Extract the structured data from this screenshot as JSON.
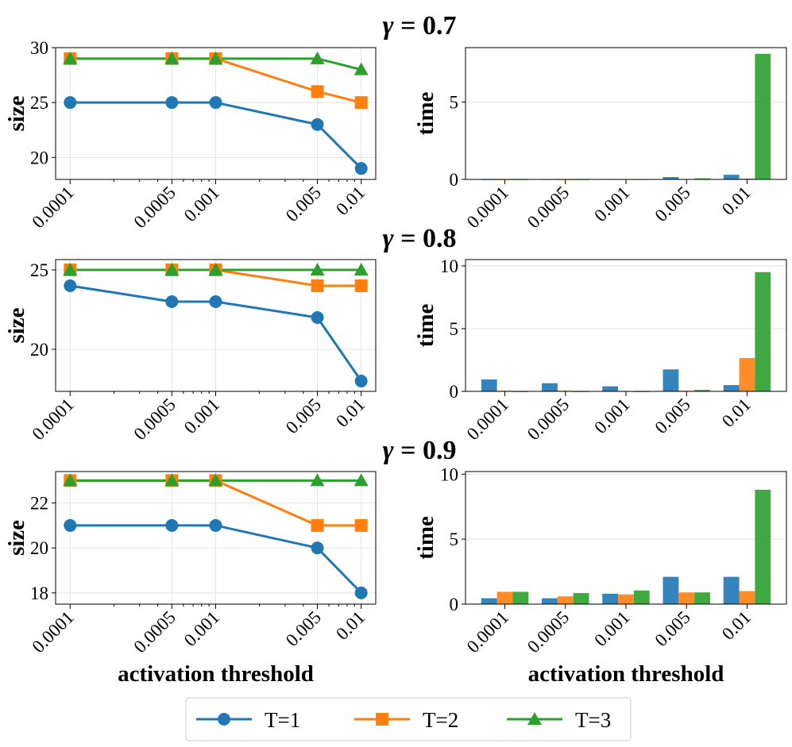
{
  "legend": {
    "entries": [
      {
        "label": "T=1",
        "color": "#1f77b4",
        "marker": "circle"
      },
      {
        "label": "T=2",
        "color": "#ff7f0e",
        "marker": "square"
      },
      {
        "label": "T=3",
        "color": "#2ca02c",
        "marker": "triangle"
      }
    ]
  },
  "chart_data": [
    {
      "type": "line",
      "panel": "gamma-0.7-size",
      "title": "γ = 0.7",
      "title_var": "γ",
      "title_val": "= 0.7",
      "xscale": "log",
      "x": [
        0.0001,
        0.0005,
        0.001,
        0.005,
        0.01
      ],
      "xtick_labels": [
        "0.0001",
        "0.0005",
        "0.001",
        "0.005",
        "0.01"
      ],
      "xlabel": "",
      "ylabel": "size",
      "ylim": [
        18.0,
        30.0
      ],
      "yticks": [
        20,
        25,
        30
      ],
      "grid": true,
      "series": [
        {
          "name": "T=1",
          "values": [
            25,
            25,
            25,
            23,
            19
          ]
        },
        {
          "name": "T=2",
          "values": [
            29,
            29,
            29,
            26,
            25
          ]
        },
        {
          "name": "T=3",
          "values": [
            29,
            29,
            29,
            29,
            28
          ]
        }
      ]
    },
    {
      "type": "bar",
      "panel": "gamma-0.7-time",
      "categories": [
        "0.0001",
        "0.0005",
        "0.001",
        "0.005",
        "0.01"
      ],
      "xlabel": "",
      "ylabel": "time",
      "ylim": [
        0,
        8.5
      ],
      "yticks": [
        0,
        5
      ],
      "grid": true,
      "series": [
        {
          "name": "T=1",
          "values": [
            0.01,
            0.02,
            0.03,
            0.15,
            0.3
          ]
        },
        {
          "name": "T=2",
          "values": [
            0.01,
            0.01,
            0.02,
            0.03,
            0.05
          ]
        },
        {
          "name": "T=3",
          "values": [
            0.01,
            0.01,
            0.02,
            0.07,
            8.1
          ]
        }
      ]
    },
    {
      "type": "line",
      "panel": "gamma-0.8-size",
      "title": "γ = 0.8",
      "title_var": "γ",
      "title_val": "= 0.8",
      "xscale": "log",
      "x": [
        0.0001,
        0.0005,
        0.001,
        0.005,
        0.01
      ],
      "xtick_labels": [
        "0.0001",
        "0.0005",
        "0.001",
        "0.005",
        "0.01"
      ],
      "xlabel": "",
      "ylabel": "size",
      "ylim": [
        17.35,
        25.65
      ],
      "yticks": [
        20,
        25
      ],
      "grid": true,
      "series": [
        {
          "name": "T=1",
          "values": [
            24,
            23,
            23,
            22,
            18
          ]
        },
        {
          "name": "T=2",
          "values": [
            25,
            25,
            25,
            24,
            24
          ]
        },
        {
          "name": "T=3",
          "values": [
            25,
            25,
            25,
            25,
            25
          ]
        }
      ]
    },
    {
      "type": "bar",
      "panel": "gamma-0.8-time",
      "categories": [
        "0.0001",
        "0.0005",
        "0.001",
        "0.005",
        "0.01"
      ],
      "xlabel": "",
      "ylabel": "time",
      "ylim": [
        0,
        10.5
      ],
      "yticks": [
        0,
        5,
        10
      ],
      "grid": true,
      "series": [
        {
          "name": "T=1",
          "values": [
            0.95,
            0.65,
            0.4,
            1.75,
            0.5
          ]
        },
        {
          "name": "T=2",
          "values": [
            0.05,
            0.05,
            0.02,
            0.05,
            2.65
          ]
        },
        {
          "name": "T=3",
          "values": [
            0.01,
            0.01,
            0.01,
            0.12,
            9.5
          ]
        }
      ]
    },
    {
      "type": "line",
      "panel": "gamma-0.9-size",
      "title": "γ = 0.9",
      "title_var": "γ",
      "title_val": "= 0.9",
      "xscale": "log",
      "x": [
        0.0001,
        0.0005,
        0.001,
        0.005,
        0.01
      ],
      "xtick_labels": [
        "0.0001",
        "0.0005",
        "0.001",
        "0.005",
        "0.01"
      ],
      "xlabel": "activation threshold",
      "ylabel": "size",
      "ylim": [
        17.5,
        23.4
      ],
      "yticks": [
        18,
        20,
        22
      ],
      "grid": true,
      "series": [
        {
          "name": "T=1",
          "values": [
            21,
            21,
            21,
            20,
            18
          ]
        },
        {
          "name": "T=2",
          "values": [
            23,
            23,
            23,
            21,
            21
          ]
        },
        {
          "name": "T=3",
          "values": [
            23,
            23,
            23,
            23,
            23
          ]
        }
      ]
    },
    {
      "type": "bar",
      "panel": "gamma-0.9-time",
      "categories": [
        "0.0001",
        "0.0005",
        "0.001",
        "0.005",
        "0.01"
      ],
      "xlabel": "activation threshold",
      "ylabel": "time",
      "ylim": [
        0,
        10.2
      ],
      "yticks": [
        0,
        5,
        10
      ],
      "grid": true,
      "series": [
        {
          "name": "T=1",
          "values": [
            0.45,
            0.45,
            0.8,
            2.1,
            2.1
          ]
        },
        {
          "name": "T=2",
          "values": [
            0.95,
            0.6,
            0.75,
            0.9,
            1.0
          ]
        },
        {
          "name": "T=3",
          "values": [
            0.95,
            0.85,
            1.05,
            0.9,
            8.8
          ]
        }
      ]
    }
  ]
}
